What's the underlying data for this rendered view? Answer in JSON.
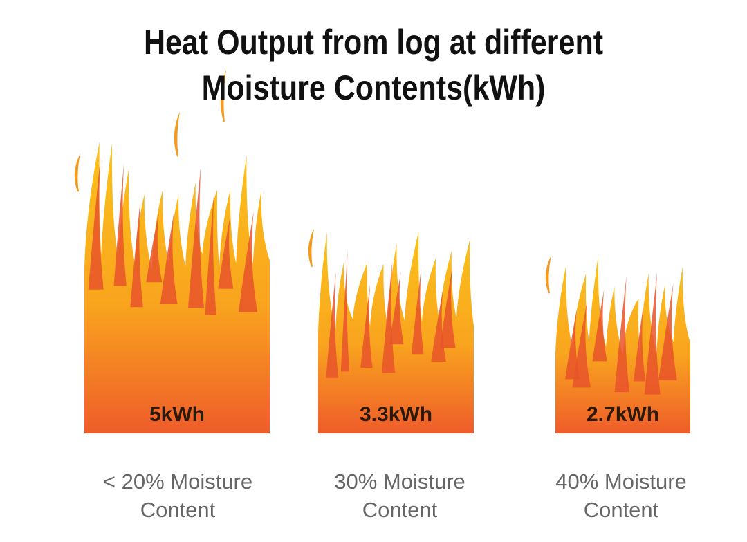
{
  "chart_data": {
    "type": "bar",
    "title_lines": [
      "Heat Output from log at different",
      "Moisture Contents(kWh)"
    ],
    "categories": [
      [
        "< 20% Moisture",
        "Content"
      ],
      [
        "30% Moisture",
        "Content"
      ],
      [
        "40% Moisture",
        "Content"
      ]
    ],
    "values": [
      5,
      3.3,
      2.7
    ],
    "data_labels": [
      "5kWh",
      "3.3kWh",
      "2.7kWh"
    ],
    "unit": "kWh",
    "grid": false,
    "legend": "none",
    "colors": {
      "flame_top": "#FBC21A",
      "flame_mid": "#F9A51E",
      "flame_bottom": "#EE5C2A",
      "flame_inner": "#E8542A",
      "wisp": "#F59A1F",
      "label_text": "#2a1a0a",
      "category_text": "#666666",
      "title_text": "#111111"
    }
  }
}
